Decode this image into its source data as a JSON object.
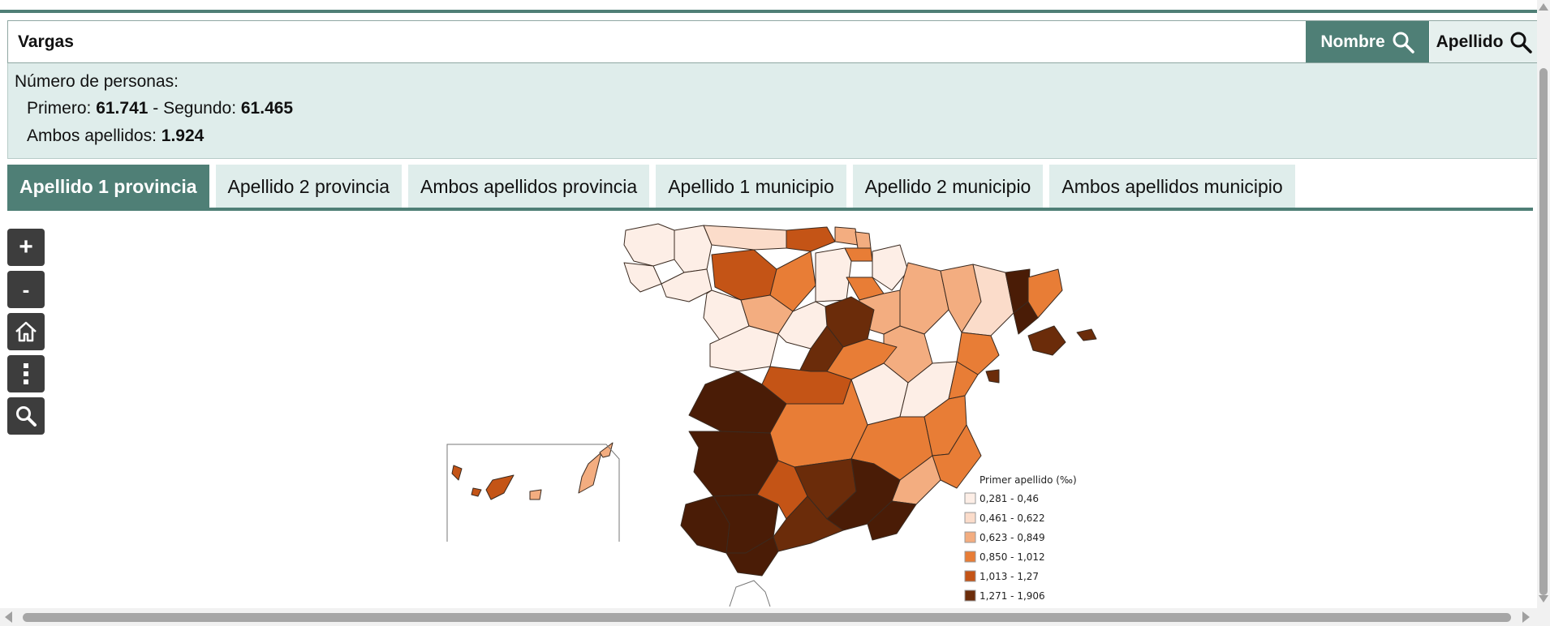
{
  "search": {
    "value": "Vargas",
    "nombre_button": "Nombre",
    "apellido_button": "Apellido"
  },
  "info": {
    "heading": "Número de personas:",
    "primero_label": "Primero:",
    "primero_value": "61.741",
    "segundo_label": "- Segundo:",
    "segundo_value": "61.465",
    "ambos_label": "Ambos apellidos:",
    "ambos_value": "1.924"
  },
  "tabs": [
    {
      "label": "Apellido 1 provincia",
      "active": true
    },
    {
      "label": "Apellido 2 provincia",
      "active": false
    },
    {
      "label": "Ambos apellidos provincia",
      "active": false
    },
    {
      "label": "Apellido 1 municipio",
      "active": false
    },
    {
      "label": "Apellido 2 municipio",
      "active": false
    },
    {
      "label": "Ambos apellidos municipio",
      "active": false
    }
  ],
  "map_controls": [
    {
      "name": "zoom-in-button",
      "icon": "plus-icon"
    },
    {
      "name": "zoom-out-button",
      "icon": "minus-icon"
    },
    {
      "name": "home-button",
      "icon": "home-icon"
    },
    {
      "name": "more-options-button",
      "icon": "vertical-ellipsis-icon"
    },
    {
      "name": "map-search-button",
      "icon": "search-icon"
    }
  ],
  "legend": {
    "title": "Primer apellido (‰)",
    "classes": [
      {
        "label": "0,281 - 0,46",
        "color": "#fdeee6"
      },
      {
        "label": "0,461 - 0,622",
        "color": "#fbdcca"
      },
      {
        "label": "0,623 - 0,849",
        "color": "#f3ad80"
      },
      {
        "label": "0,850 - 1,012",
        "color": "#e87d36"
      },
      {
        "label": "1,013 - 1,27",
        "color": "#c45416"
      },
      {
        "label": "1,271 - 1,906",
        "color": "#6b2c0a"
      }
    ]
  },
  "colors": {
    "accent": "#4f7f76",
    "info_background": "#dfedeb",
    "darkest": "#4a1c06"
  }
}
